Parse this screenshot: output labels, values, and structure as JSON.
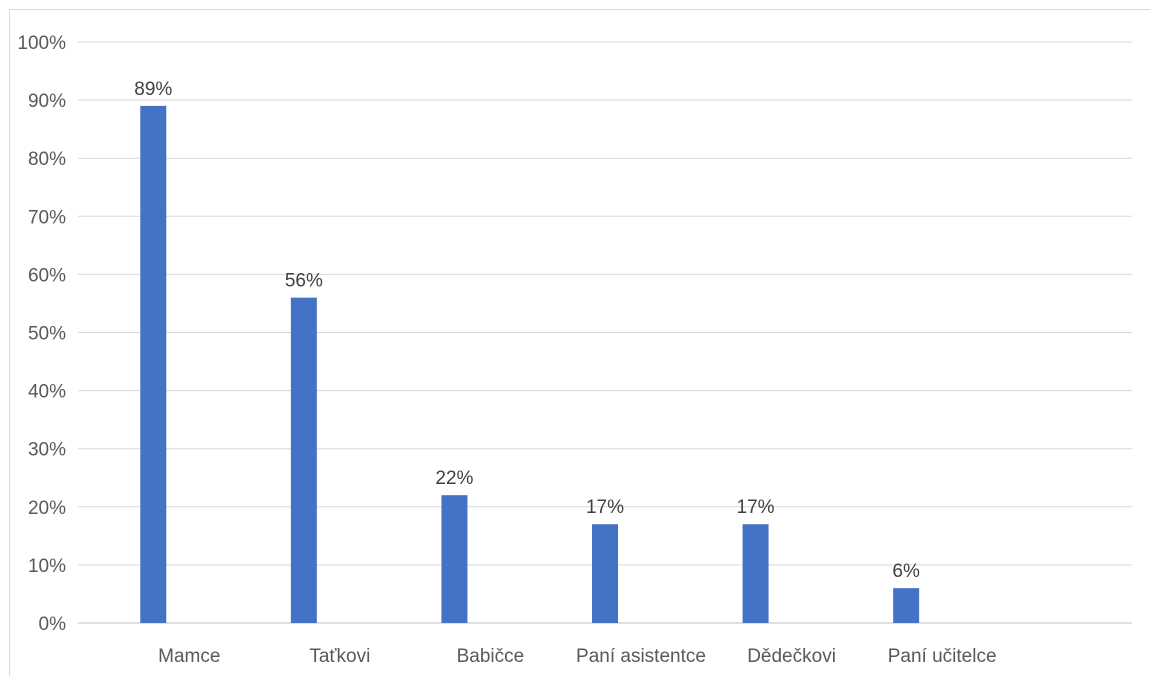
{
  "chart_data": {
    "type": "bar",
    "categories": [
      "Mamce",
      "Taťkovi",
      "Babičce",
      "Paní asistentce",
      "Dědečkovi",
      "Paní učitelce",
      ""
    ],
    "values": [
      89,
      56,
      22,
      17,
      17,
      6,
      null
    ],
    "data_labels": [
      "89%",
      "56%",
      "22%",
      "17%",
      "17%",
      "6%",
      ""
    ],
    "y_ticks": [
      "0%",
      "10%",
      "20%",
      "30%",
      "40%",
      "50%",
      "60%",
      "70%",
      "80%",
      "90%",
      "100%"
    ],
    "ylim": [
      0,
      100
    ],
    "title": "",
    "xlabel": "",
    "ylabel": "",
    "grid": true,
    "legend": "none",
    "bar_color": "#4472c4",
    "grid_color": "#d9d9d9"
  }
}
